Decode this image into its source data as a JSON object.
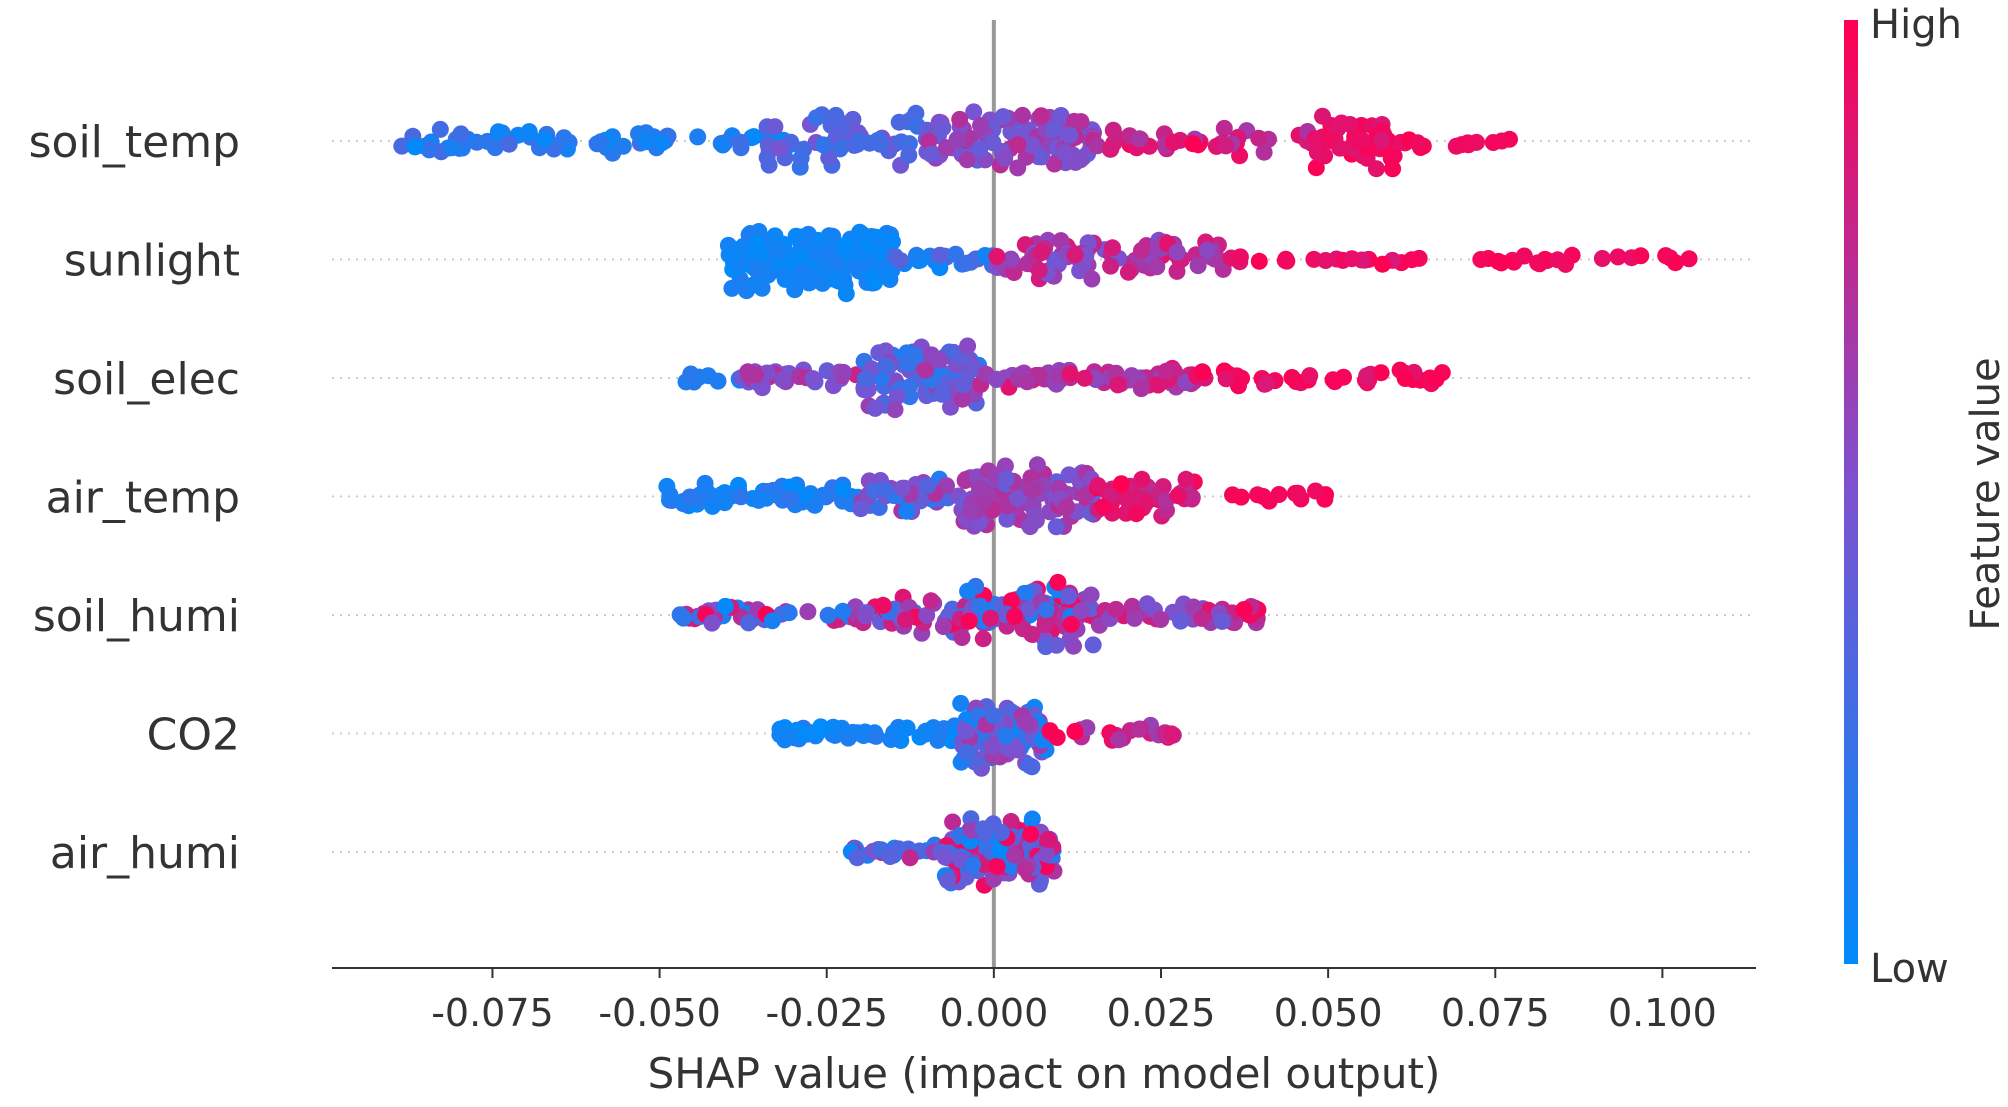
{
  "chart_data": {
    "type": "scatter",
    "subtype": "shap-beeswarm",
    "title": "",
    "xlabel": "SHAP value (impact on model output)",
    "ylabel": "",
    "xlim": [
      -0.099,
      0.114
    ],
    "xticks": [
      -0.075,
      -0.05,
      -0.025,
      0.0,
      0.025,
      0.05,
      0.075,
      0.1
    ],
    "xtick_labels": [
      "-0.075",
      "-0.050",
      "-0.025",
      "0.000",
      "0.025",
      "0.050",
      "0.075",
      "0.100"
    ],
    "colorbar": {
      "title": "Feature value",
      "high_label": "High",
      "low_label": "Low",
      "low_color": "#008bfb",
      "high_color": "#ff0052"
    },
    "zero_line_color": "#999999",
    "features": [
      {
        "name": "soil_temp",
        "min": -0.09,
        "max": 0.08,
        "peak": 0.0,
        "clusters": [
          {
            "lo": -0.09,
            "hi": -0.03,
            "n": 70,
            "c": [
              0.0,
              0.3
            ],
            "sp": 0.35
          },
          {
            "lo": -0.035,
            "hi": -0.01,
            "n": 55,
            "c": [
              0.2,
              0.5
            ],
            "sp": 0.9
          },
          {
            "lo": -0.01,
            "hi": 0.015,
            "n": 110,
            "c": [
              0.35,
              0.75
            ],
            "sp": 1.0
          },
          {
            "lo": 0.015,
            "hi": 0.048,
            "n": 40,
            "c": [
              0.65,
              1.0
            ],
            "sp": 0.45
          },
          {
            "lo": 0.048,
            "hi": 0.06,
            "n": 40,
            "c": [
              0.85,
              1.0
            ],
            "sp": 0.9
          },
          {
            "lo": 0.06,
            "hi": 0.08,
            "n": 14,
            "c": [
              0.9,
              1.0
            ],
            "sp": 0.2
          }
        ]
      },
      {
        "name": "sunlight",
        "min": -0.04,
        "max": 0.104,
        "peak": -0.028,
        "clusters": [
          {
            "lo": -0.04,
            "hi": -0.015,
            "n": 200,
            "c": [
              0.0,
              0.12
            ],
            "sp": 1.0
          },
          {
            "lo": -0.015,
            "hi": 0.0,
            "n": 25,
            "c": [
              0.0,
              0.4
            ],
            "sp": 0.25
          },
          {
            "lo": 0.0,
            "hi": 0.035,
            "n": 95,
            "c": [
              0.45,
              0.9
            ],
            "sp": 0.6
          },
          {
            "lo": 0.035,
            "hi": 0.065,
            "n": 20,
            "c": [
              0.85,
              1.0
            ],
            "sp": 0.15
          },
          {
            "lo": 0.07,
            "hi": 0.104,
            "n": 22,
            "c": [
              0.9,
              1.0
            ],
            "sp": 0.2
          }
        ]
      },
      {
        "name": "soil_elec",
        "min": -0.049,
        "max": 0.068,
        "peak": -0.012,
        "clusters": [
          {
            "lo": -0.049,
            "hi": -0.038,
            "n": 8,
            "c": [
              0.0,
              0.2
            ],
            "sp": 0.15
          },
          {
            "lo": -0.038,
            "hi": -0.02,
            "n": 40,
            "c": [
              0.4,
              0.8
            ],
            "sp": 0.3
          },
          {
            "lo": -0.02,
            "hi": -0.002,
            "n": 90,
            "c": [
              0.15,
              0.7
            ],
            "sp": 1.0
          },
          {
            "lo": -0.002,
            "hi": 0.03,
            "n": 75,
            "c": [
              0.55,
              0.9
            ],
            "sp": 0.3
          },
          {
            "lo": 0.03,
            "hi": 0.068,
            "n": 40,
            "c": [
              0.85,
              1.0
            ],
            "sp": 0.25
          }
        ]
      },
      {
        "name": "air_temp",
        "min": -0.049,
        "max": 0.05,
        "peak": 0.003,
        "clusters": [
          {
            "lo": -0.049,
            "hi": -0.02,
            "n": 60,
            "c": [
              0.0,
              0.2
            ],
            "sp": 0.4
          },
          {
            "lo": -0.02,
            "hi": -0.005,
            "n": 40,
            "c": [
              0.1,
              0.7
            ],
            "sp": 0.5
          },
          {
            "lo": -0.005,
            "hi": 0.015,
            "n": 110,
            "c": [
              0.4,
              0.75
            ],
            "sp": 1.0
          },
          {
            "lo": 0.015,
            "hi": 0.03,
            "n": 50,
            "c": [
              0.7,
              1.0
            ],
            "sp": 0.65
          },
          {
            "lo": 0.034,
            "hi": 0.05,
            "n": 12,
            "c": [
              0.9,
              1.0
            ],
            "sp": 0.2
          }
        ]
      },
      {
        "name": "soil_humi",
        "min": -0.047,
        "max": 0.04,
        "peak": 0.0,
        "clusters": [
          {
            "lo": -0.047,
            "hi": -0.02,
            "n": 45,
            "c": [
              0.0,
              1.0
            ],
            "sp": 0.35
          },
          {
            "lo": -0.02,
            "hi": -0.005,
            "n": 40,
            "c": [
              0.1,
              1.0
            ],
            "sp": 0.55
          },
          {
            "lo": -0.005,
            "hi": 0.015,
            "n": 110,
            "c": [
              0.0,
              1.0
            ],
            "sp": 1.0
          },
          {
            "lo": 0.015,
            "hi": 0.04,
            "n": 50,
            "c": [
              0.4,
              1.0
            ],
            "sp": 0.35
          }
        ]
      },
      {
        "name": "CO2",
        "min": -0.032,
        "max": 0.028,
        "peak": 0.002,
        "clusters": [
          {
            "lo": -0.032,
            "hi": -0.005,
            "n": 55,
            "c": [
              0.0,
              0.15
            ],
            "sp": 0.25
          },
          {
            "lo": -0.005,
            "hi": 0.008,
            "n": 120,
            "c": [
              0.0,
              0.7
            ],
            "sp": 1.0
          },
          {
            "lo": 0.008,
            "hi": 0.028,
            "n": 25,
            "c": [
              0.6,
              1.0
            ],
            "sp": 0.3
          }
        ]
      },
      {
        "name": "air_humi",
        "min": -0.022,
        "max": 0.009,
        "peak": 0.001,
        "clusters": [
          {
            "lo": -0.022,
            "hi": -0.008,
            "n": 25,
            "c": [
              0.0,
              0.8
            ],
            "sp": 0.2
          },
          {
            "lo": -0.008,
            "hi": 0.009,
            "n": 130,
            "c": [
              0.0,
              1.0
            ],
            "sp": 1.0
          }
        ]
      }
    ]
  }
}
